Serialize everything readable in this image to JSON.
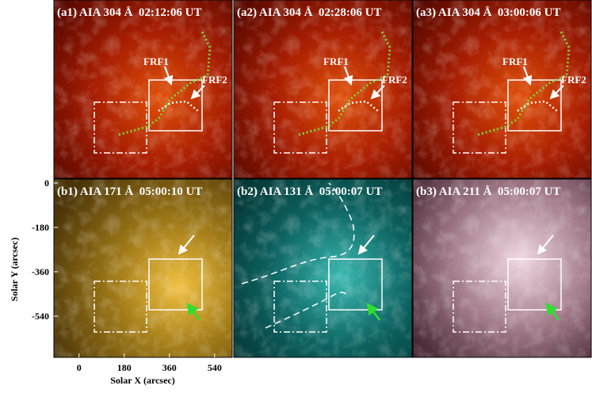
{
  "panels": [
    {
      "label": "(a1) AIA 304 Å  02:12:06 UT",
      "annotations": [
        "FRF1",
        "FRF2"
      ]
    },
    {
      "label": "(a2) AIA 304 Å  02:28:06 UT",
      "annotations": [
        "FRF1",
        "FRF2"
      ]
    },
    {
      "label": "(a3) AIA 304 Å  03:00:06 UT",
      "annotations": [
        "FRF1",
        "FRF2"
      ]
    },
    {
      "label": "(b1) AIA 171 Å  05:00:10 UT"
    },
    {
      "label": "(b2) AIA 131 Å  05:00:07 UT"
    },
    {
      "label": "(b3) AIA 211 Å  05:00:07 UT"
    }
  ],
  "axes": {
    "x_label": "Solar X (arcsec)",
    "y_label": "Solar Y (arcsec)",
    "xlim": [
      -100,
      610
    ],
    "ylim": [
      -707,
      16
    ],
    "xticks": [
      0,
      180,
      360,
      540
    ],
    "yticks": [
      0,
      -180,
      -360,
      -540
    ]
  }
}
